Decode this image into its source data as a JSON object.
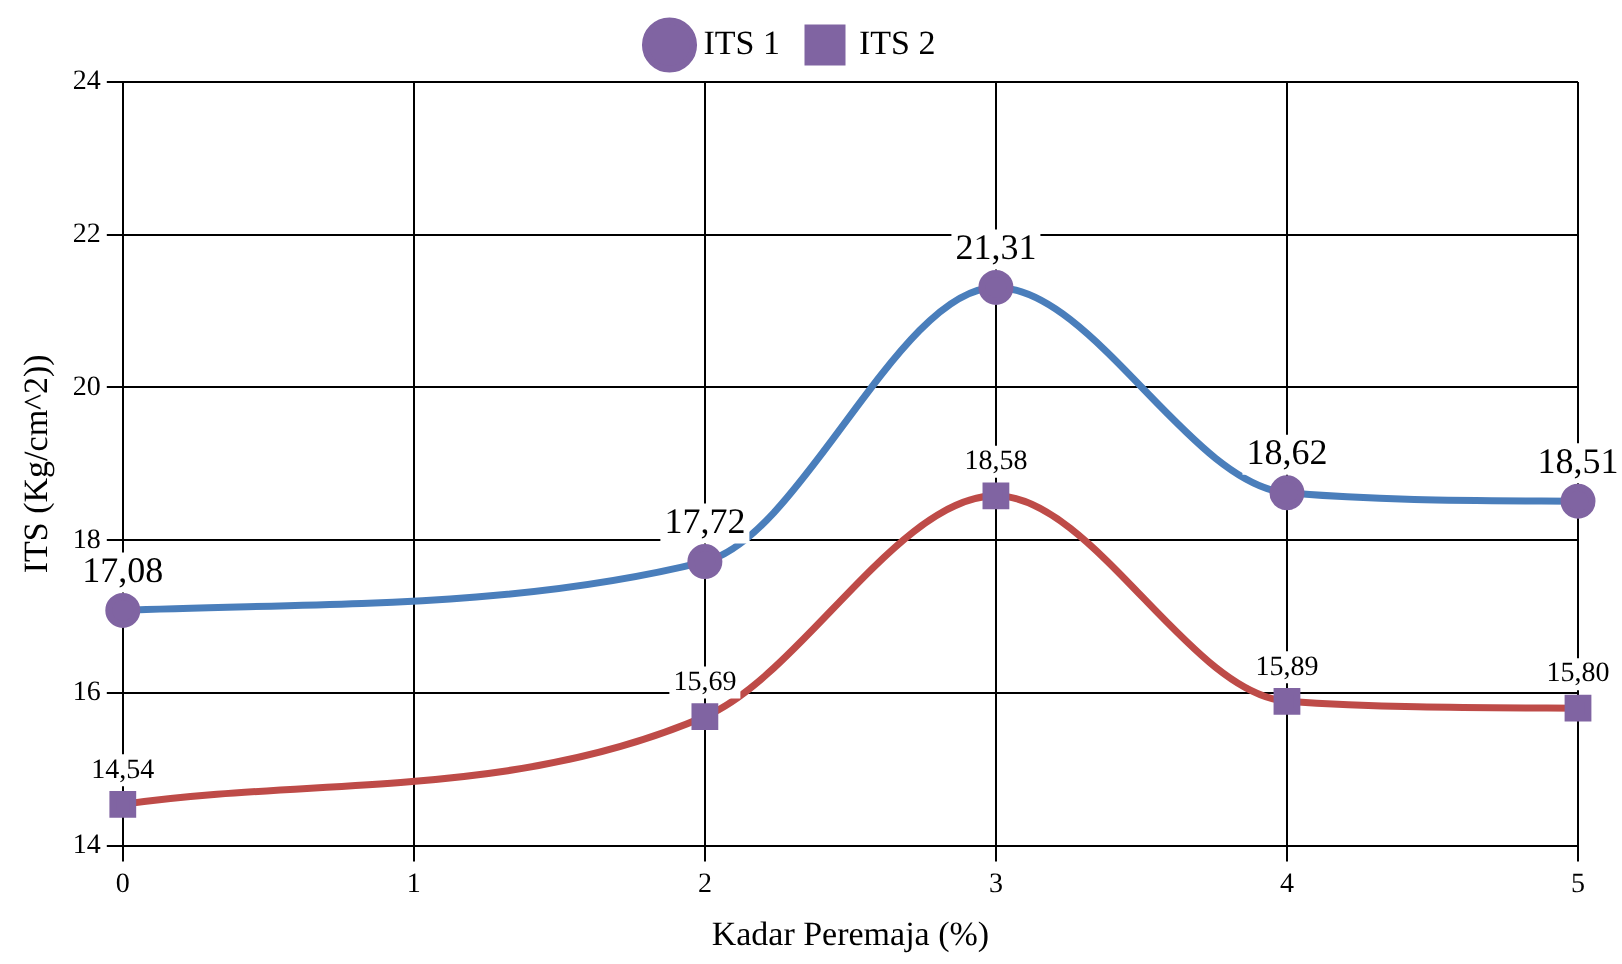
{
  "chart_data": {
    "type": "line",
    "xlabel": "Kadar Peremaja (%)",
    "ylabel": "ITS (Kg/cm^2))",
    "categories": [
      "0",
      "1",
      "2",
      "3",
      "4",
      "5"
    ],
    "series": [
      {
        "name": "ITS 1",
        "color": "#4a7ebb",
        "colors": [
          "#8064a2",
          null,
          "#8064a2",
          "#8064a2",
          "#8064a2",
          "#8064a2"
        ],
        "marker": "circle",
        "values": [
          17.08,
          null,
          17.72,
          21.31,
          18.62,
          18.51
        ],
        "value_labels": [
          "17,08",
          null,
          "17,72",
          "21,31",
          "18,62",
          "18,51"
        ]
      },
      {
        "name": "ITS 2",
        "color": "#be4b48",
        "colors": [
          "#8064a2",
          null,
          "#8064a2",
          "#8064a2",
          "#8064a2",
          "#8064a2"
        ],
        "marker": "square",
        "values": [
          14.54,
          null,
          15.69,
          18.58,
          15.89,
          15.8
        ],
        "value_labels": [
          "14,54",
          null,
          "15,69",
          "18,58",
          "15,89",
          "15,80"
        ]
      }
    ],
    "ylim": [
      14,
      24
    ],
    "yticks": [
      14,
      16,
      18,
      20,
      22,
      24
    ],
    "grid": true,
    "legend": "top"
  }
}
